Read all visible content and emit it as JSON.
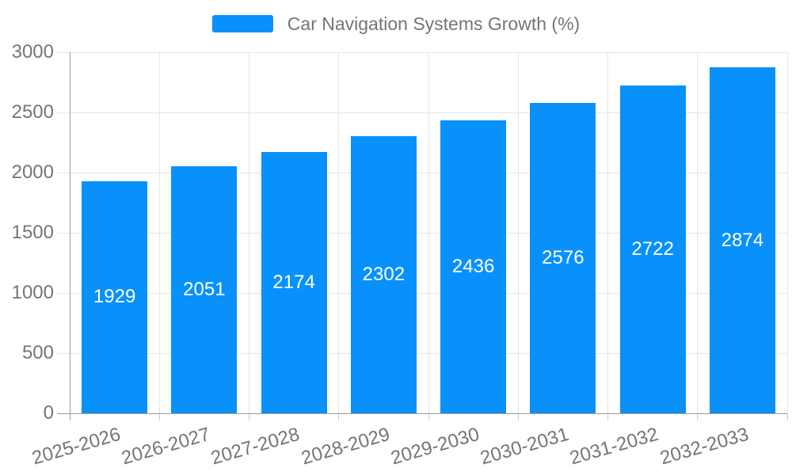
{
  "legend": {
    "label": "Car Navigation Systems Growth (%)"
  },
  "colors": {
    "bar": "#0991fb",
    "axis_text": "#757575",
    "grid_line": "#e6e6e6",
    "tick_line": "#cccccc",
    "axis_line": "#9b9b9b",
    "value_label": "#ffffff",
    "background": "#ffffff"
  },
  "chart_data": {
    "type": "bar",
    "title": "Car Navigation Systems Growth (%)",
    "categories": [
      "2025-2026",
      "2026-2027",
      "2027-2028",
      "2028-2029",
      "2029-2030",
      "2030-2031",
      "2031-2032",
      "2032-2033"
    ],
    "values": [
      1929,
      2051,
      2174,
      2302,
      2436,
      2576,
      2722,
      2874
    ],
    "xlabel": "",
    "ylabel": "",
    "ylim": [
      0,
      3000
    ],
    "yticks": [
      0,
      500,
      1000,
      1500,
      2000,
      2500,
      3000
    ],
    "grid": true,
    "legend_position": "top",
    "value_label_position": "inside-center",
    "x_label_rotation_deg": -16
  }
}
